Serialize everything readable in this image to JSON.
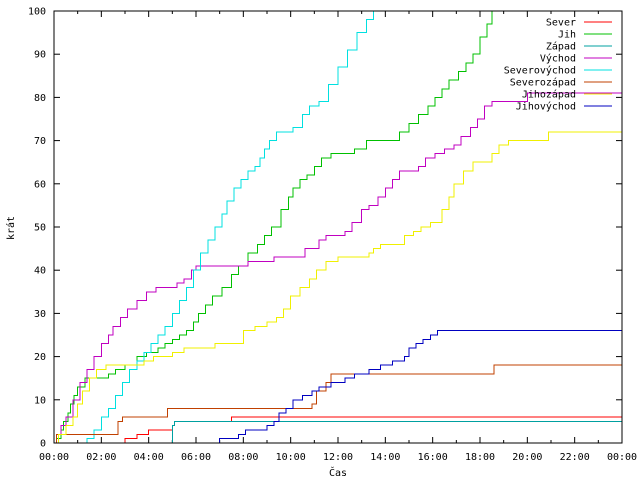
{
  "chart_data": {
    "type": "line",
    "title": "",
    "xlabel": "Čas",
    "ylabel": "krát",
    "xlim": [
      0,
      24
    ],
    "ylim": [
      0,
      100
    ],
    "grid": false,
    "legend_position": "top-right",
    "x_ticks": [
      {
        "value": 0,
        "label": "00:00"
      },
      {
        "value": 2,
        "label": "02:00"
      },
      {
        "value": 4,
        "label": "04:00"
      },
      {
        "value": 6,
        "label": "06:00"
      },
      {
        "value": 8,
        "label": "08:00"
      },
      {
        "value": 10,
        "label": "10:00"
      },
      {
        "value": 12,
        "label": "12:00"
      },
      {
        "value": 14,
        "label": "14:00"
      },
      {
        "value": 16,
        "label": "16:00"
      },
      {
        "value": 18,
        "label": "18:00"
      },
      {
        "value": 20,
        "label": "20:00"
      },
      {
        "value": 22,
        "label": "22:00"
      },
      {
        "value": 24,
        "label": "00:00"
      }
    ],
    "y_ticks": [
      {
        "value": 0,
        "label": "0"
      },
      {
        "value": 10,
        "label": "10"
      },
      {
        "value": 20,
        "label": "20"
      },
      {
        "value": 30,
        "label": "30"
      },
      {
        "value": 40,
        "label": "40"
      },
      {
        "value": 50,
        "label": "50"
      },
      {
        "value": 60,
        "label": "60"
      },
      {
        "value": 70,
        "label": "70"
      },
      {
        "value": 80,
        "label": "80"
      },
      {
        "value": 90,
        "label": "90"
      },
      {
        "value": 100,
        "label": "100"
      }
    ],
    "series": [
      {
        "name": "Sever",
        "color": "#ff0000",
        "points": [
          [
            0,
            0
          ],
          [
            2.8,
            0
          ],
          [
            3.0,
            1
          ],
          [
            3.5,
            2
          ],
          [
            4.0,
            3
          ],
          [
            5.0,
            4
          ],
          [
            5.1,
            5
          ],
          [
            7.2,
            5
          ],
          [
            7.5,
            6
          ],
          [
            24,
            6
          ]
        ]
      },
      {
        "name": "Jih",
        "color": "#00c000",
        "points": [
          [
            0,
            0
          ],
          [
            0.1,
            1
          ],
          [
            0.3,
            3
          ],
          [
            0.4,
            5
          ],
          [
            0.6,
            7
          ],
          [
            0.7,
            9
          ],
          [
            0.85,
            11
          ],
          [
            1.0,
            13
          ],
          [
            1.3,
            15
          ],
          [
            2.0,
            15
          ],
          [
            2.3,
            16
          ],
          [
            2.6,
            17
          ],
          [
            3.0,
            18
          ],
          [
            3.5,
            20
          ],
          [
            3.9,
            21
          ],
          [
            4.4,
            22
          ],
          [
            4.7,
            23
          ],
          [
            5.0,
            24
          ],
          [
            5.3,
            25
          ],
          [
            5.6,
            26
          ],
          [
            5.9,
            28
          ],
          [
            6.1,
            30
          ],
          [
            6.4,
            32
          ],
          [
            6.7,
            34
          ],
          [
            7.1,
            36
          ],
          [
            7.5,
            39
          ],
          [
            7.8,
            41
          ],
          [
            8.2,
            44
          ],
          [
            8.6,
            46
          ],
          [
            8.9,
            48
          ],
          [
            9.2,
            50
          ],
          [
            9.6,
            54
          ],
          [
            9.9,
            57
          ],
          [
            10.1,
            59
          ],
          [
            10.4,
            61
          ],
          [
            10.7,
            62
          ],
          [
            11.0,
            64
          ],
          [
            11.3,
            66
          ],
          [
            11.7,
            67
          ],
          [
            12.5,
            67
          ],
          [
            12.7,
            68
          ],
          [
            13.2,
            70
          ],
          [
            14.3,
            70
          ],
          [
            14.6,
            72
          ],
          [
            15.0,
            74
          ],
          [
            15.4,
            76
          ],
          [
            15.8,
            78
          ],
          [
            16.1,
            80
          ],
          [
            16.4,
            82
          ],
          [
            16.7,
            84
          ],
          [
            17.1,
            86
          ],
          [
            17.4,
            88
          ],
          [
            17.7,
            90
          ],
          [
            18.0,
            94
          ],
          [
            18.3,
            97
          ],
          [
            18.5,
            100
          ]
        ]
      },
      {
        "name": "Západ",
        "color": "#00a0a0",
        "points": [
          [
            0,
            0
          ],
          [
            4.9,
            0
          ],
          [
            5.0,
            4
          ],
          [
            5.1,
            5
          ],
          [
            24,
            5
          ]
        ]
      },
      {
        "name": "Východ",
        "color": "#c000c0",
        "points": [
          [
            0,
            0
          ],
          [
            0.1,
            2
          ],
          [
            0.3,
            4
          ],
          [
            0.5,
            6
          ],
          [
            0.8,
            10
          ],
          [
            1.1,
            14
          ],
          [
            1.4,
            17
          ],
          [
            1.7,
            20
          ],
          [
            2.0,
            23
          ],
          [
            2.3,
            25
          ],
          [
            2.5,
            27
          ],
          [
            2.8,
            29
          ],
          [
            3.1,
            31
          ],
          [
            3.5,
            33
          ],
          [
            3.9,
            35
          ],
          [
            4.3,
            36
          ],
          [
            5.2,
            37
          ],
          [
            5.5,
            38
          ],
          [
            5.8,
            40
          ],
          [
            6.0,
            41
          ],
          [
            8.0,
            41
          ],
          [
            8.2,
            42
          ],
          [
            9.0,
            42
          ],
          [
            9.3,
            43
          ],
          [
            10.3,
            43
          ],
          [
            10.6,
            45
          ],
          [
            11.2,
            47
          ],
          [
            11.5,
            48
          ],
          [
            12.3,
            49
          ],
          [
            12.6,
            51
          ],
          [
            13.0,
            54
          ],
          [
            13.3,
            55
          ],
          [
            13.7,
            57
          ],
          [
            14.0,
            59
          ],
          [
            14.3,
            61
          ],
          [
            14.6,
            63
          ],
          [
            15.4,
            64
          ],
          [
            15.7,
            66
          ],
          [
            16.1,
            67
          ],
          [
            16.5,
            68
          ],
          [
            16.9,
            69
          ],
          [
            17.2,
            71
          ],
          [
            17.6,
            73
          ],
          [
            17.9,
            75
          ],
          [
            18.2,
            78
          ],
          [
            18.5,
            79
          ],
          [
            19.8,
            79
          ],
          [
            20.0,
            81
          ],
          [
            24,
            81
          ]
        ]
      },
      {
        "name": "Severovýchod",
        "color": "#00e0e0",
        "points": [
          [
            0,
            0
          ],
          [
            1.2,
            0
          ],
          [
            1.4,
            1
          ],
          [
            1.7,
            3
          ],
          [
            2.0,
            6
          ],
          [
            2.3,
            8
          ],
          [
            2.6,
            11
          ],
          [
            2.9,
            14
          ],
          [
            3.2,
            17
          ],
          [
            3.5,
            19
          ],
          [
            3.8,
            21
          ],
          [
            4.1,
            23
          ],
          [
            4.4,
            25
          ],
          [
            4.7,
            27
          ],
          [
            5.0,
            30
          ],
          [
            5.3,
            33
          ],
          [
            5.6,
            36
          ],
          [
            5.9,
            40
          ],
          [
            6.2,
            44
          ],
          [
            6.5,
            47
          ],
          [
            6.8,
            50
          ],
          [
            7.1,
            53
          ],
          [
            7.3,
            56
          ],
          [
            7.6,
            59
          ],
          [
            7.9,
            61
          ],
          [
            8.2,
            63
          ],
          [
            8.5,
            64
          ],
          [
            8.7,
            66
          ],
          [
            8.9,
            68
          ],
          [
            9.1,
            70
          ],
          [
            9.4,
            72
          ],
          [
            10.1,
            73
          ],
          [
            10.5,
            76
          ],
          [
            10.8,
            78
          ],
          [
            11.2,
            79
          ],
          [
            11.6,
            83
          ],
          [
            12.0,
            87
          ],
          [
            12.4,
            91
          ],
          [
            12.8,
            95
          ],
          [
            13.2,
            98
          ],
          [
            13.5,
            100
          ]
        ]
      },
      {
        "name": "Severozápad",
        "color": "#c04000",
        "points": [
          [
            0,
            0
          ],
          [
            0.1,
            2
          ],
          [
            2.5,
            2
          ],
          [
            2.7,
            5
          ],
          [
            2.9,
            6
          ],
          [
            4.6,
            6
          ],
          [
            4.8,
            8
          ],
          [
            10.7,
            8
          ],
          [
            10.9,
            9
          ],
          [
            11.1,
            12
          ],
          [
            11.5,
            14
          ],
          [
            11.7,
            16
          ],
          [
            18.4,
            16
          ],
          [
            18.6,
            18
          ],
          [
            24,
            18
          ]
        ]
      },
      {
        "name": "Jihozápad",
        "color": "#f0f000",
        "points": [
          [
            0,
            0
          ],
          [
            0.2,
            2
          ],
          [
            0.5,
            4
          ],
          [
            0.8,
            6
          ],
          [
            1.0,
            9
          ],
          [
            1.2,
            12
          ],
          [
            1.5,
            15
          ],
          [
            1.8,
            17
          ],
          [
            2.2,
            18
          ],
          [
            3.5,
            18
          ],
          [
            3.8,
            19
          ],
          [
            4.2,
            20
          ],
          [
            5.0,
            21
          ],
          [
            5.5,
            22
          ],
          [
            6.5,
            22
          ],
          [
            6.8,
            23
          ],
          [
            7.7,
            23
          ],
          [
            8.0,
            26
          ],
          [
            8.5,
            27
          ],
          [
            9.0,
            28
          ],
          [
            9.4,
            29
          ],
          [
            9.7,
            31
          ],
          [
            10.0,
            34
          ],
          [
            10.4,
            36
          ],
          [
            10.8,
            38
          ],
          [
            11.1,
            40
          ],
          [
            11.5,
            42
          ],
          [
            12.0,
            43
          ],
          [
            13.3,
            44
          ],
          [
            13.5,
            45
          ],
          [
            13.8,
            46
          ],
          [
            14.6,
            46
          ],
          [
            14.8,
            48
          ],
          [
            15.2,
            49
          ],
          [
            15.5,
            50
          ],
          [
            15.9,
            51
          ],
          [
            16.4,
            54
          ],
          [
            16.7,
            57
          ],
          [
            16.9,
            60
          ],
          [
            17.3,
            63
          ],
          [
            17.7,
            65
          ],
          [
            18.5,
            67
          ],
          [
            18.8,
            69
          ],
          [
            19.2,
            70
          ],
          [
            20.7,
            70
          ],
          [
            20.9,
            72
          ],
          [
            24,
            72
          ]
        ]
      },
      {
        "name": "Jihovýchod",
        "color": "#0000c0",
        "points": [
          [
            0,
            0
          ],
          [
            6.9,
            0
          ],
          [
            7.0,
            1
          ],
          [
            7.8,
            2
          ],
          [
            8.1,
            3
          ],
          [
            9.0,
            4
          ],
          [
            9.3,
            5
          ],
          [
            9.5,
            7
          ],
          [
            9.8,
            8
          ],
          [
            10.1,
            10
          ],
          [
            10.5,
            11
          ],
          [
            10.9,
            12
          ],
          [
            11.2,
            13
          ],
          [
            11.7,
            14
          ],
          [
            12.3,
            15
          ],
          [
            12.7,
            16
          ],
          [
            13.3,
            17
          ],
          [
            13.8,
            18
          ],
          [
            14.3,
            19
          ],
          [
            14.8,
            20
          ],
          [
            15.0,
            22
          ],
          [
            15.3,
            23
          ],
          [
            15.6,
            24
          ],
          [
            15.9,
            25
          ],
          [
            16.2,
            26
          ],
          [
            24,
            26
          ]
        ]
      }
    ]
  }
}
